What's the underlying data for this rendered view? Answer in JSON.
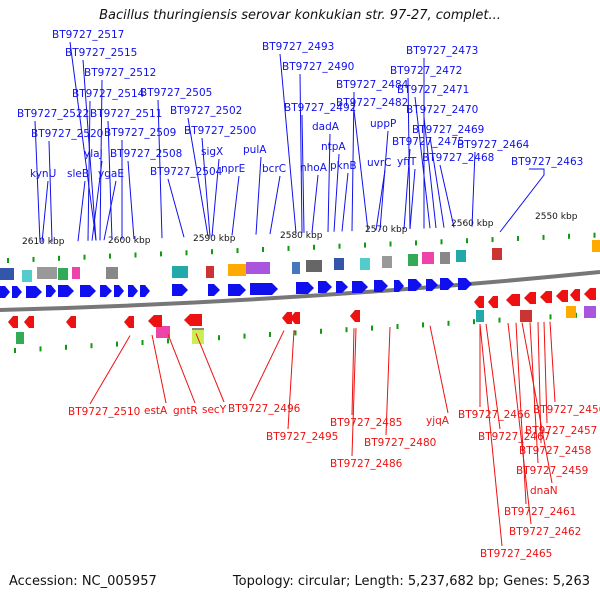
{
  "title": "Bacillus thuringiensis serovar konkukian str. 97-27, complet...",
  "footer": {
    "accession": "Accession: NC_005957",
    "topology": "Topology: circular; Length: 5,237,682 bp; Genes: 5,263"
  },
  "colors": {
    "forward": "#1010ee",
    "reverse": "#ee1111",
    "backbone": "#777777",
    "tick": "#119911"
  },
  "scale_labels": [
    "2610 kbp",
    "2600 kbp",
    "2590 kbp",
    "2580 kbp",
    "2570 kbp",
    "2560 kbp",
    "2550 kbp"
  ],
  "forward_labels": [
    "BT9727_2517",
    "BT9727_2515",
    "BT9727_2512",
    "BT9727_2514",
    "BT9727_2505",
    "BT9727_2522",
    "BT9727_2511",
    "BT9727_2502",
    "BT9727_2520",
    "BT9727_2509",
    "BT9727_2500",
    "ylaJ",
    "BT9727_2508",
    "sigX",
    "kynU",
    "sleB",
    "ygaE",
    "BT9727_2504",
    "nprE",
    "pulA",
    "bcrC",
    "BT9727_2493",
    "BT9727_2490",
    "BT9727_2484",
    "BT9727_2492",
    "BT9727_2482",
    "dadA",
    "uppP",
    "ntpA",
    "nhoA",
    "pknB",
    "uvrC",
    "BT9727_2475",
    "yfiT",
    "BT9727_2473",
    "BT9727_2472",
    "BT9727_2471",
    "BT9727_2470",
    "BT9727_2469",
    "BT9727_2468",
    "BT9727_2464",
    "BT9727_2463"
  ],
  "reverse_labels": [
    "BT9727_2510",
    "estA",
    "gntR",
    "secY",
    "BT9727_2496",
    "BT9727_2495",
    "BT9727_2485",
    "BT9727_2480",
    "BT9727_2486",
    "yjqA",
    "BT9727_2466",
    "BT9727_2467",
    "BT9727_2456",
    "BT9727_2457",
    "BT9727_2458",
    "BT9727_2459",
    "dnaN",
    "BT9727_2461",
    "BT9727_2462",
    "BT9727_2465"
  ]
}
